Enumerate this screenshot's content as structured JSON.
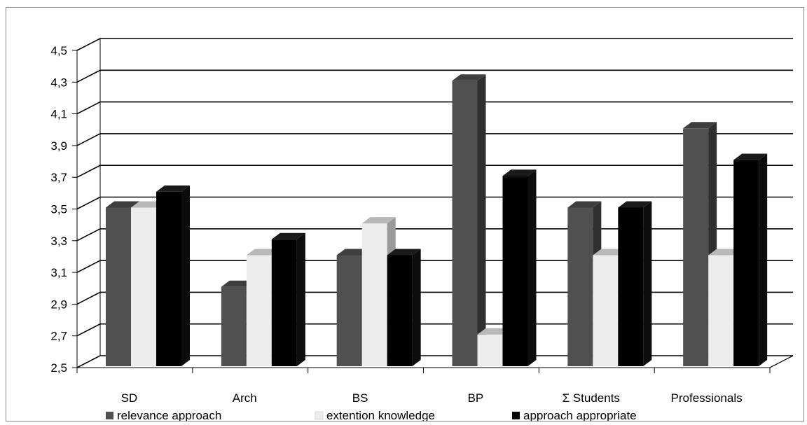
{
  "chart_data": {
    "type": "bar",
    "categories": [
      "SD",
      "Arch",
      "BS",
      "BP",
      "Σ Students",
      "Professionals"
    ],
    "series": [
      {
        "name": "relevance approach",
        "values": [
          3.5,
          3.0,
          3.2,
          4.3,
          3.5,
          4.0
        ]
      },
      {
        "name": "extention knowledge",
        "values": [
          3.5,
          3.2,
          3.4,
          2.7,
          3.2,
          3.2
        ]
      },
      {
        "name": "approach appropriate",
        "values": [
          3.6,
          3.3,
          3.2,
          3.7,
          3.5,
          3.8
        ]
      }
    ],
    "ylim": [
      2.5,
      4.5
    ],
    "yticks": [
      "2,5",
      "2,7",
      "2,9",
      "3,1",
      "3,3",
      "3,5",
      "3,7",
      "3,9",
      "4,1",
      "4,3",
      "4,5"
    ],
    "grid": true,
    "legend_position": "bottom",
    "style": "3d-clustered-column"
  },
  "colors": {
    "series": [
      "#505050",
      "#ececec",
      "#000000"
    ],
    "grid": "#000000",
    "frame": "#858585"
  }
}
